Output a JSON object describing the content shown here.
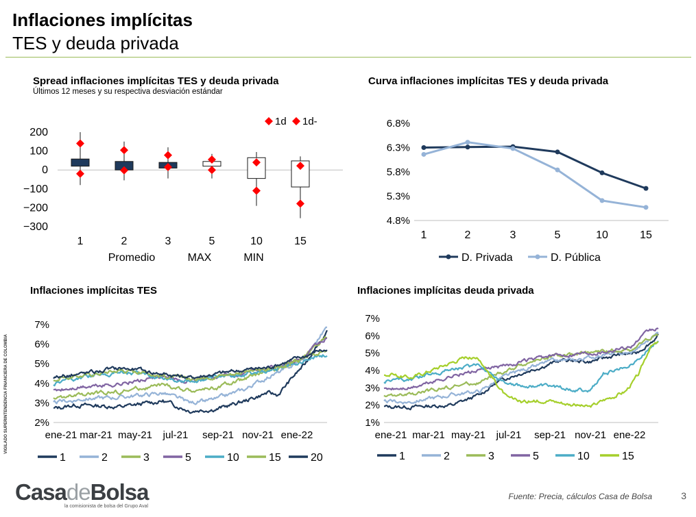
{
  "page": {
    "title": "Inflaciones implícitas",
    "subtitle": "TES y deuda privada",
    "side_note": "VIGILADO   SUPERINTENDENCIA FINANCIERA DE COLOMBIA",
    "logo_text_1": "Casa",
    "logo_text_2": "de",
    "logo_text_3": "Bolsa",
    "logo_tagline": "la comisionista de bolsa del Grupo Aval",
    "source": "Fuente: Precia, cálculos Casa de Bolsa",
    "page_number": "3",
    "colors": {
      "accent_rule": "#9bbb59",
      "dark_navy": "#1f3a5c",
      "marker_red": "#ff0000"
    }
  },
  "chart_data": [
    {
      "id": "spread",
      "type": "box",
      "title": "Spread inflaciones implícitas TES y deuda privada",
      "subtitle": "Últimos 12 meses y su respectiva desviación estándar",
      "categories": [
        "1",
        "2",
        "3",
        "5",
        "10",
        "15"
      ],
      "box_low": [
        20,
        0,
        10,
        20,
        -45,
        -90
      ],
      "box_high": [
        58,
        45,
        40,
        45,
        65,
        48
      ],
      "whisker_min": [
        -80,
        -55,
        -45,
        -45,
        -190,
        -255
      ],
      "whisker_max": [
        200,
        150,
        120,
        85,
        95,
        72
      ],
      "dev_plus": [
        140,
        105,
        78,
        55,
        40,
        22
      ],
      "dev_minus": [
        -20,
        -2,
        15,
        0,
        -110,
        -178
      ],
      "box_fill": [
        "#1f3a5c",
        "#1f3a5c",
        "#1f3a5c",
        "#ffffff",
        "#ffffff",
        "#ffffff"
      ],
      "yticks": [
        200,
        100,
        0,
        -100,
        -200,
        -300
      ],
      "ylim": [
        -300,
        200
      ],
      "x_legend": [
        "Promedio",
        "MAX",
        "MIN"
      ],
      "legend": [
        "1d",
        "1d-"
      ],
      "legend_position": "top-right"
    },
    {
      "id": "curve",
      "type": "line",
      "title": "Curva inflaciones implícitas TES y deuda privada",
      "categories": [
        "1",
        "2",
        "3",
        "5",
        "10",
        "15"
      ],
      "series": [
        {
          "name": "D. Privada",
          "color": "#1f3a5c",
          "values": [
            6.3,
            6.31,
            6.32,
            6.21,
            5.78,
            5.46
          ]
        },
        {
          "name": "D. Pública",
          "color": "#95b3d7",
          "values": [
            6.16,
            6.41,
            6.28,
            5.84,
            5.21,
            5.07
          ]
        }
      ],
      "yticks": [
        "6.8%",
        "6.3%",
        "5.8%",
        "5.3%",
        "4.8%"
      ],
      "ylim": [
        4.8,
        6.8
      ],
      "legend_position": "bottom"
    },
    {
      "id": "tes",
      "type": "line",
      "title": "Inflaciones implícitas TES",
      "xticks": [
        "ene-21",
        "mar-21",
        "may-21",
        "jul-21",
        "sep-21",
        "nov-21",
        "ene-22"
      ],
      "yticks": [
        "7%",
        "6%",
        "5%",
        "4%",
        "3%",
        "2%"
      ],
      "ylim": [
        2,
        7
      ],
      "x_range": [
        "ene-21",
        "mar-22"
      ],
      "series": [
        {
          "name": "1",
          "color": "#1f3a5c",
          "anchors": [
            [
              0,
              2.7
            ],
            [
              0.08,
              2.9
            ],
            [
              0.25,
              2.8
            ],
            [
              0.4,
              3.1
            ],
            [
              0.5,
              2.6
            ],
            [
              0.6,
              2.7
            ],
            [
              0.7,
              3.1
            ],
            [
              0.78,
              3.5
            ],
            [
              0.82,
              3.4
            ],
            [
              0.88,
              4.4
            ],
            [
              0.92,
              5.0
            ],
            [
              0.96,
              5.9
            ],
            [
              1.0,
              6.6
            ]
          ]
        },
        {
          "name": "2",
          "color": "#95b3d7",
          "anchors": [
            [
              0,
              3.0
            ],
            [
              0.1,
              3.2
            ],
            [
              0.25,
              3.3
            ],
            [
              0.4,
              3.5
            ],
            [
              0.5,
              3.0
            ],
            [
              0.6,
              3.2
            ],
            [
              0.7,
              3.7
            ],
            [
              0.78,
              4.3
            ],
            [
              0.85,
              4.7
            ],
            [
              0.92,
              5.3
            ],
            [
              0.97,
              6.3
            ],
            [
              1.0,
              6.9
            ]
          ]
        },
        {
          "name": "3",
          "color": "#9bbb59",
          "anchors": [
            [
              0,
              3.2
            ],
            [
              0.1,
              3.4
            ],
            [
              0.25,
              3.6
            ],
            [
              0.4,
              3.9
            ],
            [
              0.5,
              3.6
            ],
            [
              0.6,
              3.8
            ],
            [
              0.7,
              4.2
            ],
            [
              0.78,
              4.6
            ],
            [
              0.85,
              4.9
            ],
            [
              0.92,
              5.4
            ],
            [
              0.97,
              6.1
            ],
            [
              1.0,
              6.4
            ]
          ]
        },
        {
          "name": "5",
          "color": "#8064a2",
          "anchors": [
            [
              0,
              3.6
            ],
            [
              0.1,
              3.8
            ],
            [
              0.25,
              4.0
            ],
            [
              0.4,
              4.3
            ],
            [
              0.5,
              4.1
            ],
            [
              0.6,
              4.3
            ],
            [
              0.7,
              4.6
            ],
            [
              0.78,
              4.9
            ],
            [
              0.85,
              5.0
            ],
            [
              0.92,
              5.4
            ],
            [
              0.97,
              6.0
            ],
            [
              1.0,
              6.3
            ]
          ]
        },
        {
          "name": "10",
          "color": "#4bacc6",
          "anchors": [
            [
              0,
              4.0
            ],
            [
              0.1,
              4.3
            ],
            [
              0.25,
              4.6
            ],
            [
              0.4,
              4.3
            ],
            [
              0.5,
              4.1
            ],
            [
              0.6,
              4.3
            ],
            [
              0.7,
              4.5
            ],
            [
              0.78,
              4.6
            ],
            [
              0.85,
              4.9
            ],
            [
              0.92,
              5.2
            ],
            [
              0.97,
              5.4
            ],
            [
              1.0,
              5.5
            ]
          ]
        },
        {
          "name": "15",
          "color": "#9bbb59",
          "anchors": [
            [
              0,
              4.2
            ],
            [
              0.1,
              4.4
            ],
            [
              0.25,
              4.7
            ],
            [
              0.4,
              4.4
            ],
            [
              0.5,
              4.2
            ],
            [
              0.6,
              4.4
            ],
            [
              0.7,
              4.6
            ],
            [
              0.78,
              4.7
            ],
            [
              0.85,
              5.0
            ],
            [
              0.92,
              5.3
            ],
            [
              0.97,
              5.6
            ],
            [
              1.0,
              5.6
            ]
          ]
        },
        {
          "name": "20",
          "color": "#1f3a5c",
          "anchors": [
            [
              0,
              4.3
            ],
            [
              0.1,
              4.5
            ],
            [
              0.25,
              4.8
            ],
            [
              0.4,
              4.5
            ],
            [
              0.5,
              4.3
            ],
            [
              0.6,
              4.5
            ],
            [
              0.7,
              4.7
            ],
            [
              0.78,
              4.8
            ],
            [
              0.85,
              5.1
            ],
            [
              0.92,
              5.4
            ],
            [
              0.97,
              5.7
            ],
            [
              1.0,
              5.7
            ]
          ]
        }
      ],
      "legend_position": "bottom"
    },
    {
      "id": "privada",
      "type": "line",
      "title": "Inflaciones implícitas deuda privada",
      "xticks": [
        "ene-21",
        "mar-21",
        "may-21",
        "jul-21",
        "sep-21",
        "nov-21",
        "ene-22"
      ],
      "yticks": [
        "7%",
        "6%",
        "5%",
        "4%",
        "3%",
        "2%",
        "1%"
      ],
      "ylim": [
        1,
        7
      ],
      "x_range": [
        "ene-21",
        "mar-22"
      ],
      "series": [
        {
          "name": "1",
          "color": "#1f3a5c",
          "anchors": [
            [
              0,
              1.9
            ],
            [
              0.1,
              1.9
            ],
            [
              0.25,
              2.0
            ],
            [
              0.35,
              2.6
            ],
            [
              0.4,
              3.2
            ],
            [
              0.45,
              3.6
            ],
            [
              0.55,
              4.1
            ],
            [
              0.65,
              4.6
            ],
            [
              0.75,
              4.5
            ],
            [
              0.85,
              4.9
            ],
            [
              0.92,
              5.0
            ],
            [
              0.97,
              5.6
            ],
            [
              1.0,
              6.0
            ]
          ]
        },
        {
          "name": "2",
          "color": "#95b3d7",
          "anchors": [
            [
              0,
              2.2
            ],
            [
              0.1,
              2.2
            ],
            [
              0.25,
              2.6
            ],
            [
              0.35,
              2.8
            ],
            [
              0.42,
              3.5
            ],
            [
              0.5,
              4.0
            ],
            [
              0.6,
              4.5
            ],
            [
              0.7,
              4.6
            ],
            [
              0.8,
              4.9
            ],
            [
              0.9,
              5.0
            ],
            [
              0.97,
              5.8
            ],
            [
              1.0,
              6.2
            ]
          ]
        },
        {
          "name": "3",
          "color": "#9bbb59",
          "anchors": [
            [
              0,
              2.5
            ],
            [
              0.1,
              2.6
            ],
            [
              0.25,
              3.1
            ],
            [
              0.35,
              3.3
            ],
            [
              0.42,
              3.8
            ],
            [
              0.5,
              4.3
            ],
            [
              0.6,
              4.8
            ],
            [
              0.7,
              4.9
            ],
            [
              0.8,
              5.1
            ],
            [
              0.9,
              5.2
            ],
            [
              0.97,
              5.9
            ],
            [
              1.0,
              6.1
            ]
          ]
        },
        {
          "name": "5",
          "color": "#8064a2",
          "anchors": [
            [
              0,
              2.9
            ],
            [
              0.1,
              3.0
            ],
            [
              0.25,
              3.7
            ],
            [
              0.35,
              4.0
            ],
            [
              0.42,
              4.2
            ],
            [
              0.5,
              4.5
            ],
            [
              0.6,
              4.8
            ],
            [
              0.7,
              5.0
            ],
            [
              0.8,
              5.1
            ],
            [
              0.9,
              5.4
            ],
            [
              0.97,
              6.3
            ],
            [
              1.0,
              6.4
            ]
          ]
        },
        {
          "name": "10",
          "color": "#4bacc6",
          "anchors": [
            [
              0,
              3.4
            ],
            [
              0.1,
              3.5
            ],
            [
              0.25,
              4.1
            ],
            [
              0.35,
              4.3
            ],
            [
              0.42,
              3.5
            ],
            [
              0.5,
              3.1
            ],
            [
              0.6,
              3.1
            ],
            [
              0.7,
              2.9
            ],
            [
              0.75,
              2.8
            ],
            [
              0.8,
              3.8
            ],
            [
              0.88,
              4.2
            ],
            [
              0.94,
              4.8
            ],
            [
              1.0,
              5.8
            ]
          ]
        },
        {
          "name": "15",
          "color": "#a5cf2b",
          "anchors": [
            [
              0,
              3.8
            ],
            [
              0.1,
              3.6
            ],
            [
              0.25,
              4.5
            ],
            [
              0.3,
              4.8
            ],
            [
              0.35,
              4.6
            ],
            [
              0.4,
              3.5
            ],
            [
              0.45,
              2.4
            ],
            [
              0.5,
              2.2
            ],
            [
              0.6,
              2.3
            ],
            [
              0.7,
              2.0
            ],
            [
              0.75,
              1.9
            ],
            [
              0.8,
              2.3
            ],
            [
              0.88,
              2.8
            ],
            [
              0.93,
              3.8
            ],
            [
              0.97,
              5.4
            ],
            [
              1.0,
              5.6
            ]
          ]
        }
      ],
      "legend_position": "bottom"
    }
  ]
}
